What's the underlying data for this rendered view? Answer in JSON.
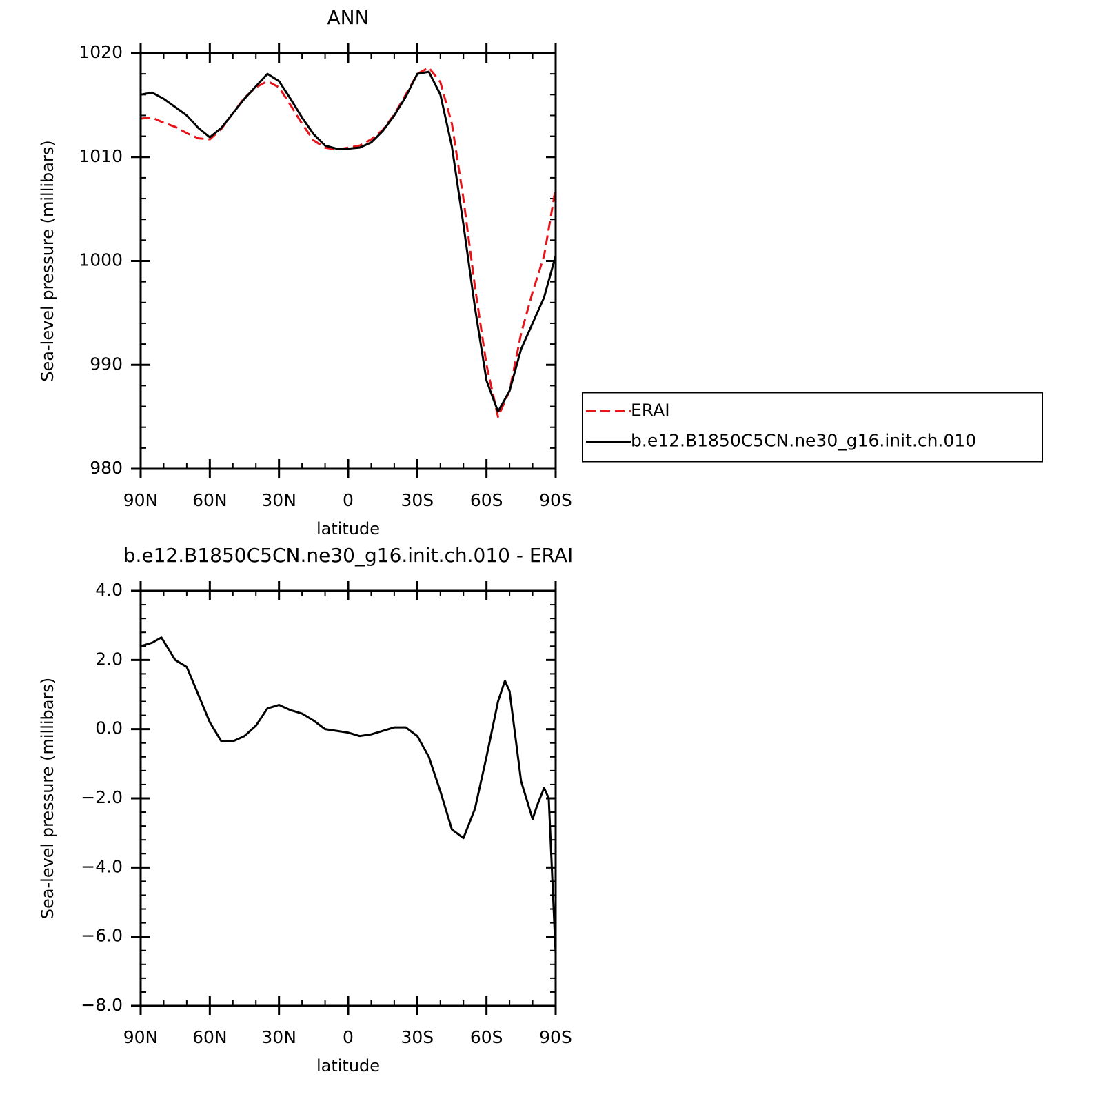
{
  "chart_data": [
    {
      "type": "line",
      "title": "ANN",
      "x_label": "latitude",
      "y_label": "Sea-level pressure (millibars)",
      "x": [
        90,
        85,
        80,
        75,
        70,
        65,
        60,
        55,
        50,
        45,
        40,
        35,
        30,
        25,
        20,
        15,
        10,
        5,
        0,
        -5,
        -10,
        -15,
        -20,
        -25,
        -30,
        -35,
        -40,
        -45,
        -50,
        -55,
        -60,
        -65,
        -70,
        -75,
        -80,
        -85,
        -90
      ],
      "series": [
        {
          "name": "ERAI",
          "color": "#e8141a",
          "line_style": "dashed",
          "values": [
            1013.7,
            1013.8,
            1013.3,
            1012.9,
            1012.3,
            1011.8,
            1011.7,
            1012.7,
            1014.2,
            1015.7,
            1016.7,
            1017.3,
            1016.7,
            1015.0,
            1013.2,
            1011.6,
            1010.9,
            1010.7,
            1010.9,
            1011.1,
            1011.7,
            1012.6,
            1014.1,
            1016.0,
            1018.0,
            1018.6,
            1017.2,
            1013.2,
            1006.0,
            997.5,
            990.0,
            985.0,
            987.5,
            993.0,
            997.0,
            1000.5,
            1007.0
          ]
        },
        {
          "name": "b.e12.B1850C5CN.ne30_g16.init.ch.010",
          "color": "#000000",
          "line_style": "solid",
          "values": [
            1016.0,
            1016.2,
            1015.6,
            1014.8,
            1014.0,
            1012.8,
            1011.9,
            1012.8,
            1014.2,
            1015.6,
            1016.8,
            1018.0,
            1017.3,
            1015.6,
            1013.8,
            1012.2,
            1011.1,
            1010.8,
            1010.8,
            1010.9,
            1011.4,
            1012.5,
            1014.0,
            1015.8,
            1018.0,
            1018.2,
            1016.0,
            1011.0,
            1003.5,
            995.5,
            988.5,
            985.5,
            987.5,
            991.5,
            994.0,
            996.5,
            1000.5
          ]
        }
      ],
      "xlim": [
        90,
        -90
      ],
      "xticks": [
        {
          "value": 90,
          "label": "90N"
        },
        {
          "value": 60,
          "label": "60N"
        },
        {
          "value": 30,
          "label": "30N"
        },
        0,
        {
          "value": -30,
          "label": "30S"
        },
        {
          "value": -60,
          "label": "60S"
        },
        {
          "value": -90,
          "label": "90S"
        }
      ],
      "ylim": [
        980,
        1020
      ],
      "yticks": [
        980,
        990,
        1000,
        1010,
        1020
      ],
      "legend": "outside-right"
    },
    {
      "type": "line",
      "title": "b.e12.B1850C5CN.ne30_g16.init.ch.010 - ERAI",
      "x_label": "latitude",
      "y_label": "Sea-level pressure (millibars)",
      "x": [
        90,
        85,
        81,
        75,
        70,
        65,
        60,
        55,
        50,
        45,
        40,
        35,
        30,
        25,
        20,
        15,
        10,
        5,
        0,
        -5,
        -10,
        -15,
        -20,
        -25,
        -30,
        -35,
        -40,
        -45,
        -50,
        -55,
        -60,
        -65,
        -68,
        -70,
        -75,
        -80,
        -82,
        -85,
        -87,
        -90
      ],
      "values": [
        2.4,
        2.5,
        2.65,
        2.0,
        1.8,
        1.0,
        0.2,
        -0.35,
        -0.35,
        -0.2,
        0.1,
        0.6,
        0.7,
        0.55,
        0.45,
        0.25,
        0.0,
        -0.05,
        -0.1,
        -0.2,
        -0.15,
        -0.05,
        0.05,
        0.05,
        -0.2,
        -0.8,
        -1.8,
        -2.9,
        -3.15,
        -2.3,
        -0.8,
        0.8,
        1.4,
        1.1,
        -1.5,
        -2.6,
        -2.2,
        -1.7,
        -2.0,
        -6.5
      ],
      "color": "#000000",
      "xlim": [
        90,
        -90
      ],
      "xticks": [
        {
          "value": 90,
          "label": "90N"
        },
        {
          "value": 60,
          "label": "60N"
        },
        {
          "value": 30,
          "label": "30N"
        },
        0,
        {
          "value": -30,
          "label": "30S"
        },
        {
          "value": -60,
          "label": "60S"
        },
        {
          "value": -90,
          "label": "90S"
        }
      ],
      "ylim": [
        -8,
        4
      ],
      "yticks": [
        {
          "value": -8,
          "label": "−8.0"
        },
        {
          "value": -6,
          "label": "−6.0"
        },
        {
          "value": -4,
          "label": "−4.0"
        },
        {
          "value": -2,
          "label": "−2.0"
        },
        {
          "value": 0,
          "label": "0.0"
        },
        {
          "value": 2,
          "label": "2.0"
        },
        {
          "value": 4,
          "label": "4.0"
        }
      ]
    }
  ]
}
